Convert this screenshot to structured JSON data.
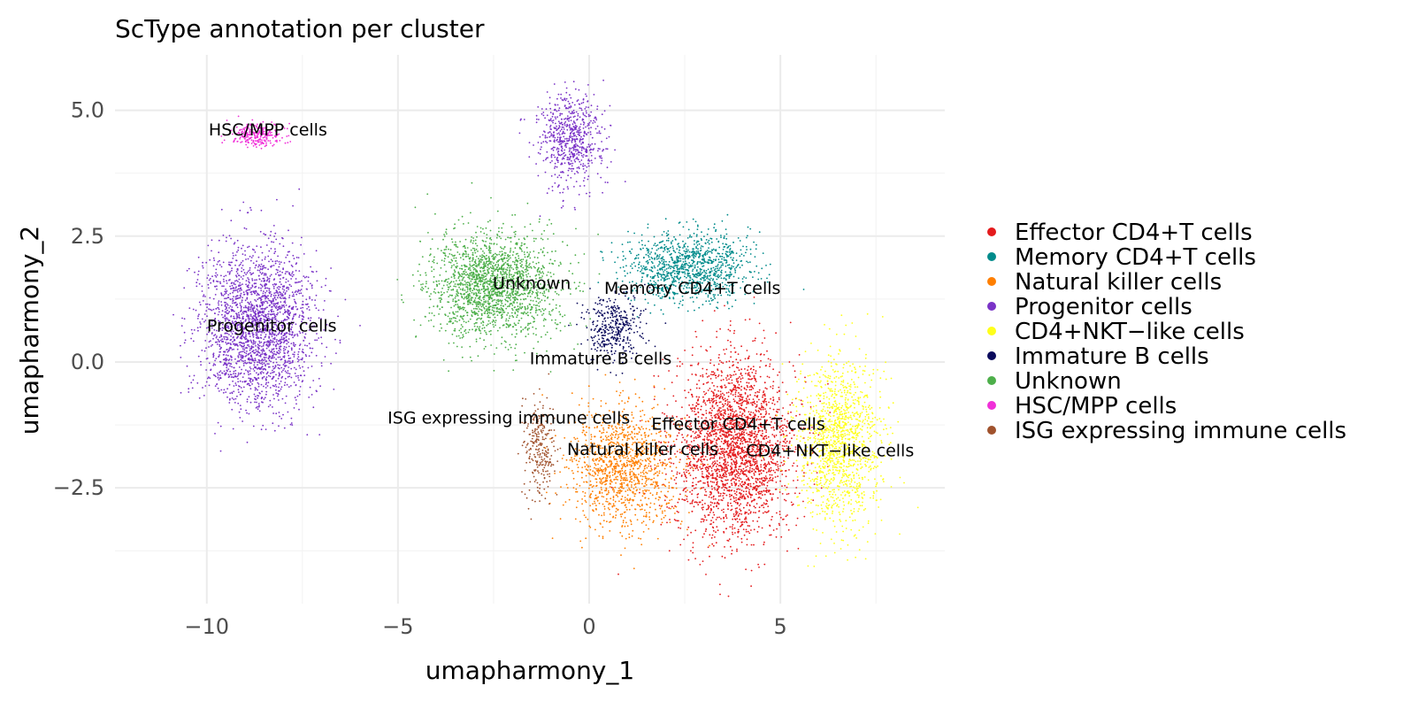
{
  "chart_data": {
    "type": "scatter",
    "title": "ScType annotation per cluster",
    "xlabel": "umapharmony_1",
    "ylabel": "umapharmony_2",
    "xlim": [
      -12.4,
      9.3
    ],
    "ylim": [
      -4.8,
      6.1
    ],
    "x_ticks": [
      {
        "value": -10,
        "label": "−10"
      },
      {
        "value": -5,
        "label": "−5"
      },
      {
        "value": 0,
        "label": "0"
      },
      {
        "value": 5,
        "label": "5"
      }
    ],
    "y_ticks": [
      {
        "value": 5.0,
        "label": "5.0"
      },
      {
        "value": 2.5,
        "label": "2.5"
      },
      {
        "value": 0.0,
        "label": "0.0"
      },
      {
        "value": -2.5,
        "label": "−2.5"
      }
    ],
    "grid": true,
    "legend_position": "right",
    "series": [
      {
        "name": "Effector CD4+T cells",
        "color": "#E41A1C",
        "centroid": [
          3.8,
          -1.7
        ],
        "spread": [
          1.25,
          1.45
        ],
        "n": 2600,
        "label": "Effector CD4+T cells",
        "label_pos": [
          3.9,
          -1.25
        ]
      },
      {
        "name": "Memory CD4+T cells",
        "color": "#008B8B",
        "centroid": [
          2.6,
          1.9
        ],
        "spread": [
          1.3,
          0.55
        ],
        "n": 1100,
        "label": "Memory CD4+T cells",
        "label_pos": [
          2.7,
          1.45
        ]
      },
      {
        "name": "Natural killer  cells",
        "color": "#FF7F00",
        "centroid": [
          0.9,
          -2.1
        ],
        "spread": [
          1.15,
          0.95
        ],
        "n": 1200,
        "label": "Natural killer  cells",
        "label_pos": [
          1.4,
          -1.75
        ]
      },
      {
        "name": "Progenitor cells",
        "color": "#7A33C7",
        "centroid": [
          -8.7,
          0.7
        ],
        "spread": [
          1.2,
          1.25
        ],
        "n": 2300,
        "label": "Progenitor cells",
        "label_pos": [
          -8.3,
          0.7
        ],
        "extra_centroid": [
          -0.5,
          4.4
        ],
        "extra_spread": [
          0.7,
          0.75
        ],
        "extra_n": 650
      },
      {
        "name": "CD4+NKT−like cells",
        "color": "#FFFF1A",
        "centroid": [
          6.5,
          -1.6
        ],
        "spread": [
          0.9,
          1.35
        ],
        "n": 1300,
        "label": "CD4+NKT−like cells",
        "label_pos": [
          6.3,
          -1.78
        ]
      },
      {
        "name": "Immature B cells",
        "color": "#0A0A5C",
        "centroid": [
          0.6,
          0.7
        ],
        "spread": [
          0.6,
          0.55
        ],
        "n": 380,
        "label": "Immature B cells",
        "label_pos": [
          0.3,
          0.05
        ]
      },
      {
        "name": "Unknown",
        "color": "#4DAF4A",
        "centroid": [
          -2.5,
          1.5
        ],
        "spread": [
          1.35,
          0.85
        ],
        "n": 1900,
        "label": "Unknown",
        "label_pos": [
          -1.5,
          1.55
        ]
      },
      {
        "name": "HSC/MPP cells",
        "color": "#F030D8",
        "centroid": [
          -8.7,
          4.5
        ],
        "spread": [
          0.6,
          0.18
        ],
        "n": 260,
        "label": "HSC/MPP cells",
        "label_pos": [
          -8.4,
          4.6
        ]
      },
      {
        "name": "ISG expressing immune cells",
        "color": "#A0522D",
        "centroid": [
          -1.3,
          -1.7
        ],
        "spread": [
          0.35,
          0.75
        ],
        "n": 260,
        "label": "ISG expressing immune cells",
        "label_pos": [
          -2.1,
          -1.13
        ]
      }
    ]
  }
}
